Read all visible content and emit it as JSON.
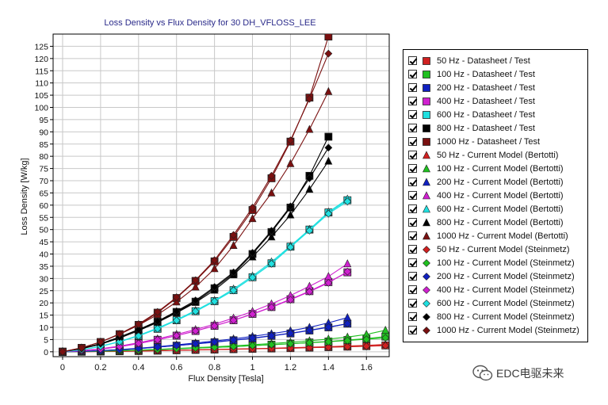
{
  "chart_data": {
    "type": "line",
    "title": "Loss Density vs Flux Density for 30 DH_VFLOSS_LEE",
    "xlabel": "Flux Density [Tesla]",
    "ylabel": "Loss Density [W/kg]",
    "xlim": [
      -0.05,
      1.72
    ],
    "ylim": [
      -2,
      130
    ],
    "xticks": [
      0,
      0.2,
      0.4,
      0.6,
      0.8,
      1,
      1.2,
      1.4,
      1.6
    ],
    "xtick_labels": [
      "0",
      "0.2",
      "0.4",
      "0.6",
      "0.8",
      "1",
      "1.2",
      "1.4",
      "1.6"
    ],
    "yticks": [
      0,
      5,
      10,
      15,
      20,
      25,
      30,
      35,
      40,
      45,
      50,
      55,
      60,
      65,
      70,
      75,
      80,
      85,
      90,
      95,
      100,
      105,
      110,
      115,
      120,
      125
    ],
    "ytick_labels": [
      "0",
      "5",
      "10",
      "15",
      "20",
      "25",
      "30",
      "35",
      "40",
      "45",
      "50",
      "55",
      "60",
      "65",
      "70",
      "75",
      "80",
      "85",
      "90",
      "95",
      "100",
      "105",
      "110",
      "115",
      "120",
      "125"
    ],
    "grid": true,
    "legend_position": "right",
    "series": [
      {
        "name": "50 Hz - Datasheet / Test",
        "color": "#d02020",
        "marker": "square",
        "x": [
          0,
          0.1,
          0.2,
          0.3,
          0.4,
          0.5,
          0.6,
          0.7,
          0.8,
          0.9,
          1.0,
          1.1,
          1.2,
          1.3,
          1.4,
          1.5,
          1.6,
          1.7
        ],
        "y": [
          0,
          0.03,
          0.1,
          0.2,
          0.3,
          0.45,
          0.6,
          0.75,
          0.9,
          1.05,
          1.2,
          1.35,
          1.5,
          1.7,
          1.9,
          2.1,
          2.3,
          2.6
        ]
      },
      {
        "name": "100 Hz - Datasheet / Test",
        "color": "#20c020",
        "marker": "square",
        "x": [
          0,
          0.1,
          0.2,
          0.3,
          0.4,
          0.5,
          0.6,
          0.7,
          0.8,
          0.9,
          1.0,
          1.1,
          1.2,
          1.3,
          1.4,
          1.5,
          1.6,
          1.7
        ],
        "y": [
          0,
          0.06,
          0.2,
          0.4,
          0.6,
          0.9,
          1.2,
          1.5,
          1.8,
          2.1,
          2.5,
          2.9,
          3.3,
          3.8,
          4.2,
          4.8,
          5.4,
          6.2
        ]
      },
      {
        "name": "200 Hz - Datasheet / Test",
        "color": "#1020c0",
        "marker": "square",
        "x": [
          0,
          0.1,
          0.2,
          0.3,
          0.4,
          0.5,
          0.6,
          0.7,
          0.8,
          0.9,
          1.0,
          1.1,
          1.2,
          1.3,
          1.4,
          1.5
        ],
        "y": [
          0,
          0.15,
          0.4,
          0.8,
          1.3,
          1.9,
          2.5,
          3.2,
          3.9,
          4.7,
          5.5,
          6.5,
          7.5,
          8.7,
          10.0,
          11.5
        ]
      },
      {
        "name": "400 Hz - Datasheet / Test",
        "color": "#d020d0",
        "marker": "square",
        "x": [
          0,
          0.1,
          0.2,
          0.3,
          0.4,
          0.5,
          0.6,
          0.7,
          0.8,
          0.9,
          1.0,
          1.1,
          1.2,
          1.3,
          1.4,
          1.5
        ],
        "y": [
          0,
          0.4,
          1.1,
          2.1,
          3.4,
          4.9,
          6.6,
          8.5,
          10.6,
          12.9,
          15.5,
          18.3,
          21.5,
          24.8,
          28.5,
          32.5
        ]
      },
      {
        "name": "600 Hz - Datasheet / Test",
        "color": "#20e0e0",
        "marker": "square",
        "x": [
          0,
          0.1,
          0.2,
          0.3,
          0.4,
          0.5,
          0.6,
          0.7,
          0.8,
          0.9,
          1.0,
          1.1,
          1.2,
          1.3,
          1.4,
          1.5
        ],
        "y": [
          0,
          0.8,
          2.2,
          4.1,
          6.5,
          9.4,
          12.9,
          16.6,
          20.7,
          25.2,
          30.5,
          36.2,
          43.0,
          50.0,
          57.0,
          62.0
        ]
      },
      {
        "name": "800 Hz - Datasheet / Test",
        "color": "#000000",
        "marker": "square",
        "x": [
          0,
          0.1,
          0.2,
          0.3,
          0.4,
          0.5,
          0.6,
          0.7,
          0.8,
          0.9,
          1.0,
          1.1,
          1.2,
          1.3,
          1.4
        ],
        "y": [
          0,
          1.3,
          3.3,
          6.0,
          9.0,
          12.3,
          16.3,
          20.5,
          26.0,
          32.0,
          40.0,
          49.0,
          59.0,
          72.0,
          88.0
        ]
      },
      {
        "name": "1000 Hz - Datasheet / Test",
        "color": "#7a1010",
        "marker": "square",
        "x": [
          0,
          0.1,
          0.2,
          0.3,
          0.4,
          0.5,
          0.6,
          0.7,
          0.8,
          0.9,
          1.0,
          1.1,
          1.2,
          1.3,
          1.4
        ],
        "y": [
          0,
          1.6,
          4.0,
          7.2,
          11.0,
          16.0,
          22.0,
          29.0,
          37.0,
          47.0,
          58.0,
          71.0,
          86.0,
          104.0,
          129.0
        ]
      },
      {
        "name": "50 Hz - Current Model (Bertotti)",
        "color": "#d02020",
        "marker": "triangle",
        "x": [
          0,
          0.1,
          0.2,
          0.3,
          0.4,
          0.5,
          0.6,
          0.7,
          0.8,
          0.9,
          1.0,
          1.1,
          1.2,
          1.3,
          1.4,
          1.5,
          1.6,
          1.7
        ],
        "y": [
          0,
          0.04,
          0.12,
          0.22,
          0.33,
          0.48,
          0.63,
          0.8,
          0.95,
          1.1,
          1.28,
          1.45,
          1.65,
          1.85,
          2.1,
          2.35,
          2.6,
          3.0
        ]
      },
      {
        "name": "100 Hz - Current Model (Bertotti)",
        "color": "#20c020",
        "marker": "triangle",
        "x": [
          0,
          0.1,
          0.2,
          0.3,
          0.4,
          0.5,
          0.6,
          0.7,
          0.8,
          0.9,
          1.0,
          1.1,
          1.2,
          1.3,
          1.4,
          1.5,
          1.6,
          1.7
        ],
        "y": [
          0,
          0.07,
          0.22,
          0.45,
          0.7,
          1.0,
          1.35,
          1.7,
          2.05,
          2.45,
          2.9,
          3.4,
          3.9,
          4.5,
          5.2,
          6.0,
          7.1,
          8.8
        ]
      },
      {
        "name": "200 Hz - Current Model (Bertotti)",
        "color": "#1020c0",
        "marker": "triangle",
        "x": [
          0,
          0.1,
          0.2,
          0.3,
          0.4,
          0.5,
          0.6,
          0.7,
          0.8,
          0.9,
          1.0,
          1.1,
          1.2,
          1.3,
          1.4,
          1.5
        ],
        "y": [
          0,
          0.17,
          0.45,
          0.9,
          1.45,
          2.1,
          2.8,
          3.6,
          4.4,
          5.3,
          6.3,
          7.4,
          8.6,
          10.0,
          11.8,
          14.0
        ]
      },
      {
        "name": "400 Hz - Current Model (Bertotti)",
        "color": "#d020d0",
        "marker": "triangle",
        "x": [
          0,
          0.1,
          0.2,
          0.3,
          0.4,
          0.5,
          0.6,
          0.7,
          0.8,
          0.9,
          1.0,
          1.1,
          1.2,
          1.3,
          1.4,
          1.5
        ],
        "y": [
          0,
          0.45,
          1.2,
          2.3,
          3.7,
          5.3,
          7.1,
          9.1,
          11.3,
          13.8,
          16.5,
          19.6,
          23.0,
          26.8,
          30.8,
          36.0
        ]
      },
      {
        "name": "600 Hz - Current Model (Bertotti)",
        "color": "#20e0e0",
        "marker": "triangle",
        "x": [
          0,
          0.1,
          0.2,
          0.3,
          0.4,
          0.5,
          0.6,
          0.7,
          0.8,
          0.9,
          1.0,
          1.1,
          1.2,
          1.3,
          1.4,
          1.5
        ],
        "y": [
          0,
          0.8,
          2.3,
          4.2,
          6.7,
          9.7,
          13.1,
          16.9,
          21.0,
          25.7,
          31.0,
          36.8,
          43.3,
          50.1,
          57.2,
          62.5
        ]
      },
      {
        "name": "800 Hz - Current Model (Bertotti)",
        "color": "#000000",
        "marker": "triangle",
        "x": [
          0,
          0.1,
          0.2,
          0.3,
          0.4,
          0.5,
          0.6,
          0.7,
          0.8,
          0.9,
          1.0,
          1.1,
          1.2,
          1.3,
          1.4
        ],
        "y": [
          0,
          1.2,
          3.1,
          5.6,
          8.6,
          12.0,
          15.9,
          20.2,
          25.2,
          31.5,
          38.8,
          47.0,
          56.0,
          66.5,
          78.0
        ]
      },
      {
        "name": "1000 Hz - Current Model (Bertotti)",
        "color": "#7a1010",
        "marker": "triangle",
        "x": [
          0,
          0.1,
          0.2,
          0.3,
          0.4,
          0.5,
          0.6,
          0.7,
          0.8,
          0.9,
          1.0,
          1.1,
          1.2,
          1.3,
          1.4
        ],
        "y": [
          0,
          1.6,
          4.0,
          7.1,
          10.9,
          15.2,
          20.4,
          26.5,
          34.0,
          43.5,
          54.5,
          65.0,
          77.0,
          91.0,
          106.5
        ]
      },
      {
        "name": "50 Hz - Current Model (Steinmetz)",
        "color": "#d02020",
        "marker": "diamond",
        "x": [
          0,
          0.1,
          0.2,
          0.3,
          0.4,
          0.5,
          0.6,
          0.7,
          0.8,
          0.9,
          1.0,
          1.1,
          1.2,
          1.3,
          1.4,
          1.5,
          1.6,
          1.7
        ],
        "y": [
          0,
          0.03,
          0.1,
          0.2,
          0.3,
          0.44,
          0.58,
          0.72,
          0.88,
          1.02,
          1.18,
          1.33,
          1.48,
          1.66,
          1.85,
          2.05,
          2.25,
          2.5
        ]
      },
      {
        "name": "100 Hz - Current Model (Steinmetz)",
        "color": "#20c020",
        "marker": "diamond",
        "x": [
          0,
          0.1,
          0.2,
          0.3,
          0.4,
          0.5,
          0.6,
          0.7,
          0.8,
          0.9,
          1.0,
          1.1,
          1.2,
          1.3,
          1.4,
          1.5,
          1.6,
          1.7
        ],
        "y": [
          0,
          0.06,
          0.2,
          0.4,
          0.6,
          0.9,
          1.2,
          1.5,
          1.8,
          2.1,
          2.5,
          2.9,
          3.3,
          3.7,
          4.1,
          4.6,
          5.1,
          5.7
        ]
      },
      {
        "name": "200 Hz - Current Model (Steinmetz)",
        "color": "#1020c0",
        "marker": "diamond",
        "x": [
          0,
          0.1,
          0.2,
          0.3,
          0.4,
          0.5,
          0.6,
          0.7,
          0.8,
          0.9,
          1.0,
          1.1,
          1.2,
          1.3,
          1.4,
          1.5
        ],
        "y": [
          0,
          0.15,
          0.42,
          0.82,
          1.32,
          1.9,
          2.55,
          3.25,
          4.0,
          4.8,
          5.6,
          6.6,
          7.6,
          8.8,
          10.1,
          11.5
        ]
      },
      {
        "name": "400 Hz - Current Model (Steinmetz)",
        "color": "#d020d0",
        "marker": "diamond",
        "x": [
          0,
          0.1,
          0.2,
          0.3,
          0.4,
          0.5,
          0.6,
          0.7,
          0.8,
          0.9,
          1.0,
          1.1,
          1.2,
          1.3,
          1.4,
          1.5
        ],
        "y": [
          0,
          0.4,
          1.1,
          2.1,
          3.4,
          4.9,
          6.6,
          8.5,
          10.6,
          12.9,
          15.4,
          18.2,
          21.3,
          24.6,
          28.2,
          32.8
        ]
      },
      {
        "name": "600 Hz - Current Model (Steinmetz)",
        "color": "#20e0e0",
        "marker": "diamond",
        "x": [
          0,
          0.1,
          0.2,
          0.3,
          0.4,
          0.5,
          0.6,
          0.7,
          0.8,
          0.9,
          1.0,
          1.1,
          1.2,
          1.3,
          1.4,
          1.5
        ],
        "y": [
          0,
          0.8,
          2.2,
          4.1,
          6.5,
          9.4,
          12.8,
          16.5,
          20.6,
          25.1,
          30.4,
          36.0,
          42.8,
          49.6,
          56.5,
          61.5
        ]
      },
      {
        "name": "800 Hz - Current Model (Steinmetz)",
        "color": "#000000",
        "marker": "diamond",
        "x": [
          0,
          0.1,
          0.2,
          0.3,
          0.4,
          0.5,
          0.6,
          0.7,
          0.8,
          0.9,
          1.0,
          1.1,
          1.2,
          1.3,
          1.4
        ],
        "y": [
          0,
          1.3,
          3.3,
          6.0,
          9.1,
          12.5,
          16.6,
          21.0,
          26.5,
          32.5,
          40.5,
          49.5,
          59.5,
          71.0,
          83.5
        ]
      },
      {
        "name": "1000 Hz - Current Model (Steinmetz)",
        "color": "#7a1010",
        "marker": "diamond",
        "x": [
          0,
          0.1,
          0.2,
          0.3,
          0.4,
          0.5,
          0.6,
          0.7,
          0.8,
          0.9,
          1.0,
          1.1,
          1.2,
          1.3,
          1.4
        ],
        "y": [
          0,
          1.6,
          4.0,
          7.3,
          11.3,
          16.3,
          22.3,
          29.3,
          37.5,
          47.8,
          59.0,
          72.0,
          86.5,
          103.5,
          122.0
        ]
      }
    ]
  },
  "watermark": {
    "text": "EDC电驱未来",
    "icon": "wechat-icon"
  }
}
